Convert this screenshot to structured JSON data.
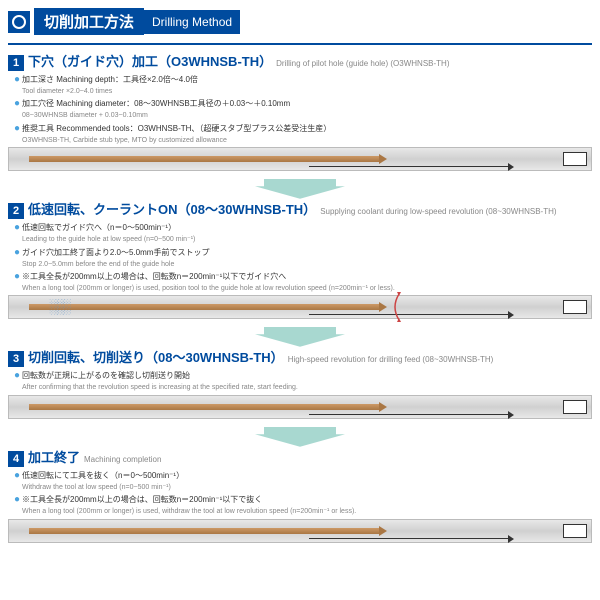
{
  "title": {
    "jp": "切削加工方法",
    "en": "Drilling Method"
  },
  "arrow_fill": "#a8d8d0",
  "steps": [
    {
      "num": "1",
      "title_jp": "下穴（ガイド穴）加工（O3WHNSB-TH）",
      "title_en": "Drilling of pilot hole (guide hole) (O3WHNSB-TH)",
      "bullets": [
        {
          "jp": "加工深さ Machining depth：工具径×2.0倍〜4.0倍",
          "en": "Tool diameter ×2.0~4.0 times"
        },
        {
          "jp": "加工穴径 Machining diameter：08〜30WHNSB工具径の＋0.03〜＋0.10mm",
          "en": "08~30WHNSB diameter + 0.03~0.10mm"
        },
        {
          "jp": "推奨工具 Recommended tools：O3WHNSB-TH、（超硬スタブ型プラス公差受注生産）",
          "en": "O3WHNSB-TH, Carbide stub type, MTO by customized allowance"
        }
      ]
    },
    {
      "num": "2",
      "title_jp": "低速回転、クーラントON（08〜30WHNSB-TH）",
      "title_en": "Supplying coolant during low-speed revolution (08~30WHNSB-TH)",
      "bullets": [
        {
          "jp": "低速回転でガイド穴へ（n＝0〜500min⁻¹）",
          "en": "Leading to the guide hole at low speed (n=0~500 min⁻¹)"
        },
        {
          "jp": "ガイド穴加工終了面より2.0〜5.0mm手前でストップ",
          "en": "Stop 2.0~5.0mm before the end of the guide hole"
        },
        {
          "jp": "※工具全長が200mm以上の場合は、回転数n＝200min⁻¹以下でガイド穴へ",
          "en": "When a long tool (200mm or longer) is used, position tool to the guide hole at low revolution speed (n=200min⁻¹ or less)."
        }
      ],
      "spray": true,
      "curve": true
    },
    {
      "num": "3",
      "title_jp": "切削回転、切削送り（08〜30WHNSB-TH）",
      "title_en": "High-speed revolution for drilling feed (08~30WHNSB-TH)",
      "bullets": [
        {
          "jp": "回転数が正規に上がるのを確認し切削送り開始",
          "en": "After confirming that the revolution speed is increasing at the specified rate, start feeding."
        }
      ]
    },
    {
      "num": "4",
      "title_jp": "加工終了",
      "title_en": "Machining completion",
      "bullets": [
        {
          "jp": "低速回転にて工具を抜く（n＝0〜500min⁻¹）",
          "en": "Withdraw the tool at low speed (n=0~500 min⁻¹)"
        },
        {
          "jp": "※工具全長が200mm以上の場合は、回転数n＝200min⁻¹以下で抜く",
          "en": "When a long tool (200mm or longer) is used, withdraw the tool at low revolution speed (n=200min⁻¹ or less)."
        }
      ]
    }
  ]
}
